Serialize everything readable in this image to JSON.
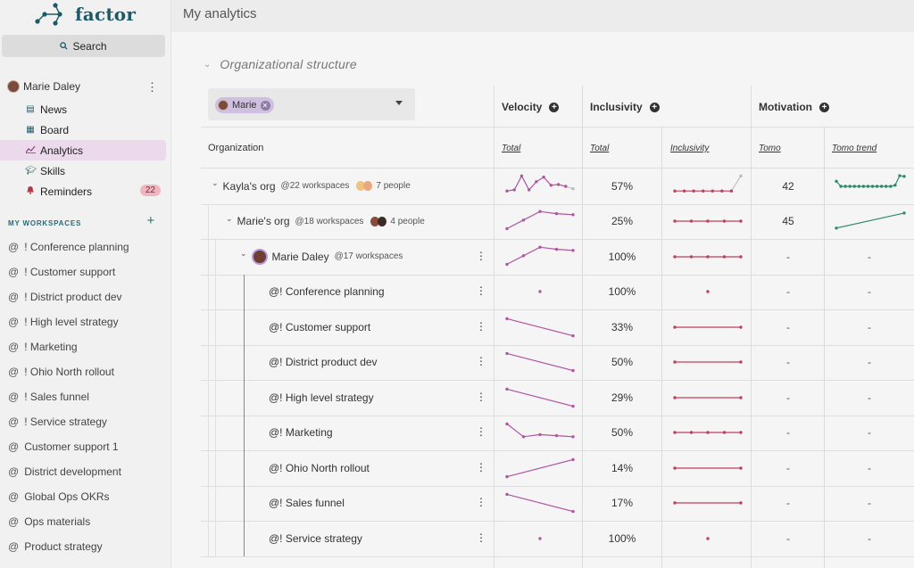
{
  "app": {
    "logo_text": "factor",
    "page_title": "My analytics"
  },
  "sidebar": {
    "search_label": "Search",
    "user_name": "Marie Daley",
    "nav": [
      {
        "label": "News",
        "icon": "news-icon"
      },
      {
        "label": "Board",
        "icon": "board-icon"
      },
      {
        "label": "Analytics",
        "icon": "analytics-icon",
        "active": true
      },
      {
        "label": "Skills",
        "icon": "skills-icon"
      },
      {
        "label": "Reminders",
        "icon": "bell-icon",
        "badge": "22"
      }
    ],
    "workspaces_header": "MY WORKSPACES",
    "workspaces": [
      "! Conference planning",
      "! Customer support",
      "! District product dev",
      "! High level strategy",
      "! Marketing",
      "! Ohio North rollout",
      "! Sales funnel",
      "! Service strategy",
      "Customer support 1",
      "District development",
      "Global Ops OKRs",
      "Ops materials",
      "Product strategy"
    ]
  },
  "section": {
    "title": "Organizational structure"
  },
  "filter": {
    "chip_label": "Marie"
  },
  "columns": {
    "velocity": "Velocity",
    "inclusivity": "Inclusivity",
    "motivation": "Motivation",
    "organization": "Organization",
    "sub_total_velocity": "Total",
    "sub_total_inclusivity": "Total",
    "sub_inclusivity": "Inclusivity",
    "sub_tomo": "Tomo",
    "sub_tomo_trend": "Tomo trend"
  },
  "accent_colors": {
    "velocity": "#b0559f",
    "inclusivity": "#c23e5e",
    "tomo": "#2e8a6a",
    "active_nav": "#ecd9ec"
  },
  "rows": [
    {
      "name": "Kayla's org",
      "workspaces": "@22 workspaces",
      "people": "7 people",
      "inclusivity_total": "57%",
      "tomo": "42",
      "tomo_trend": [
        0.72,
        0.5,
        0.5,
        0.5,
        0.5,
        0.5,
        0.5,
        0.5,
        0.5,
        0.5,
        0.5,
        0.5,
        0.5,
        0.55,
        0.96,
        0.93
      ],
      "velocity": [
        0.3,
        0.35,
        0.95,
        0.35,
        0.7,
        0.9,
        0.55,
        0.58,
        0.5,
        0.4
      ],
      "velocity_faded_last": true,
      "inclusivity_trend": [
        0.3,
        0.3,
        0.3,
        0.3,
        0.3,
        0.3,
        0.3,
        0.95
      ],
      "inclusivity_faded_last": true
    },
    {
      "name": "Marie's org",
      "workspaces": "@18 workspaces",
      "people": "4 people",
      "inclusivity_total": "25%",
      "tomo": "45",
      "tomo_trend": [
        0.2,
        0.85
      ],
      "velocity": [
        0.15,
        0.55,
        0.95,
        0.85,
        0.8
      ],
      "inclusivity_trend": [
        0.5,
        0.5,
        0.5,
        0.5,
        0.5
      ]
    },
    {
      "name": "Marie Daley",
      "workspaces": "@17 workspaces",
      "inclusivity_total": "100%",
      "tomo": "-",
      "tomo_trend_text": "-",
      "velocity": [
        0.15,
        0.55,
        0.95,
        0.85,
        0.8
      ],
      "inclusivity_trend": [
        0.5,
        0.5,
        0.5,
        0.5,
        0.5
      ]
    },
    {
      "name": "@! Conference planning",
      "inclusivity_total": "100%",
      "tomo": "-",
      "tomo_trend_text": "-",
      "velocity": [
        0.5
      ],
      "inclusivity_trend": [
        0.5
      ]
    },
    {
      "name": "@! Customer support",
      "inclusivity_total": "33%",
      "tomo": "-",
      "tomo_trend_text": "-",
      "velocity": [
        0.9,
        0.1
      ],
      "inclusivity_trend": [
        0.5,
        0.5
      ]
    },
    {
      "name": "@! District product dev",
      "inclusivity_total": "50%",
      "tomo": "-",
      "tomo_trend_text": "-",
      "velocity": [
        0.9,
        0.1
      ],
      "inclusivity_trend": [
        0.5,
        0.5
      ]
    },
    {
      "name": "@! High level strategy",
      "inclusivity_total": "29%",
      "tomo": "-",
      "tomo_trend_text": "-",
      "velocity": [
        0.9,
        0.1
      ],
      "inclusivity_trend": [
        0.5,
        0.5
      ]
    },
    {
      "name": "@! Marketing",
      "inclusivity_total": "50%",
      "tomo": "-",
      "tomo_trend_text": "-",
      "velocity": [
        0.9,
        0.3,
        0.4,
        0.35,
        0.3
      ],
      "inclusivity_trend": [
        0.5,
        0.5,
        0.5,
        0.5,
        0.5
      ]
    },
    {
      "name": "@! Ohio North rollout",
      "inclusivity_total": "14%",
      "tomo": "-",
      "tomo_trend_text": "-",
      "velocity": [
        0.1,
        0.9
      ],
      "inclusivity_trend": [
        0.5,
        0.5
      ]
    },
    {
      "name": "@! Sales funnel",
      "inclusivity_total": "17%",
      "tomo": "-",
      "tomo_trend_text": "-",
      "velocity": [
        0.9,
        0.1
      ],
      "inclusivity_trend": [
        0.5,
        0.5
      ]
    },
    {
      "name": "@! Service strategy",
      "inclusivity_total": "100%",
      "tomo": "-",
      "tomo_trend_text": "-",
      "velocity": [
        0.5
      ],
      "inclusivity_trend": [
        0.5
      ]
    }
  ]
}
